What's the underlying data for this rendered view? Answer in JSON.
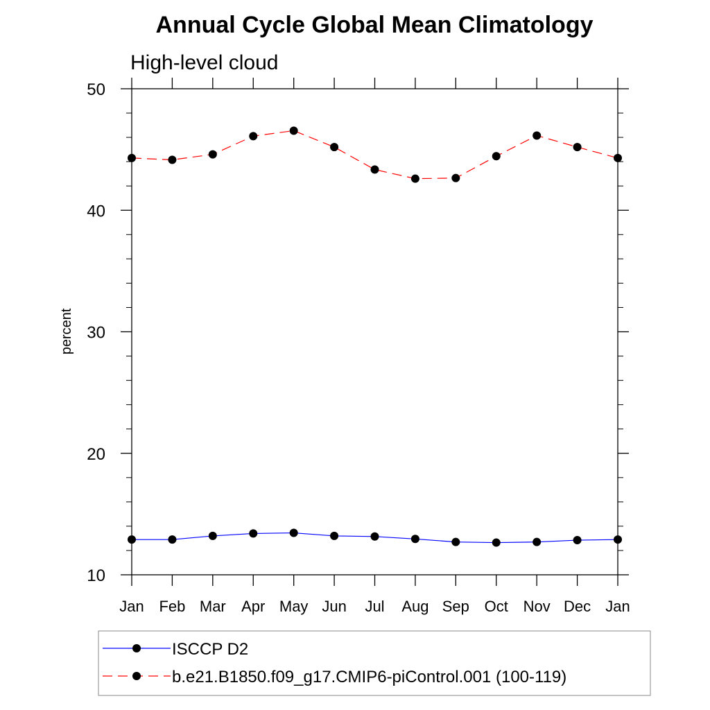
{
  "chart_data": {
    "type": "line",
    "title": "Annual Cycle Global Mean Climatology",
    "subtitle": "High-level cloud",
    "xlabel": "",
    "ylabel": "percent",
    "categories": [
      "Jan",
      "Feb",
      "Mar",
      "Apr",
      "May",
      "Jun",
      "Jul",
      "Aug",
      "Sep",
      "Oct",
      "Nov",
      "Dec",
      "Jan"
    ],
    "ylim": [
      10,
      50
    ],
    "yticks": [
      "10",
      "20",
      "30",
      "40",
      "50"
    ],
    "grid": false,
    "legend_position": "bottom",
    "series": [
      {
        "name": "ISCCP D2",
        "color": "#0000ff",
        "line_style": "solid",
        "marker": "filled-circle",
        "values": [
          12.9,
          12.9,
          13.2,
          13.4,
          13.45,
          13.2,
          13.15,
          12.95,
          12.7,
          12.65,
          12.7,
          12.85,
          12.9
        ]
      },
      {
        "name": "b.e21.B1850.f09_g17.CMIP6-piControl.001 (100-119)",
        "color": "#ff0000",
        "line_style": "dashed",
        "marker": "filled-circle",
        "values": [
          44.3,
          44.15,
          44.6,
          46.1,
          46.55,
          45.2,
          43.35,
          42.6,
          42.65,
          44.45,
          46.15,
          45.2,
          44.3
        ]
      }
    ]
  }
}
